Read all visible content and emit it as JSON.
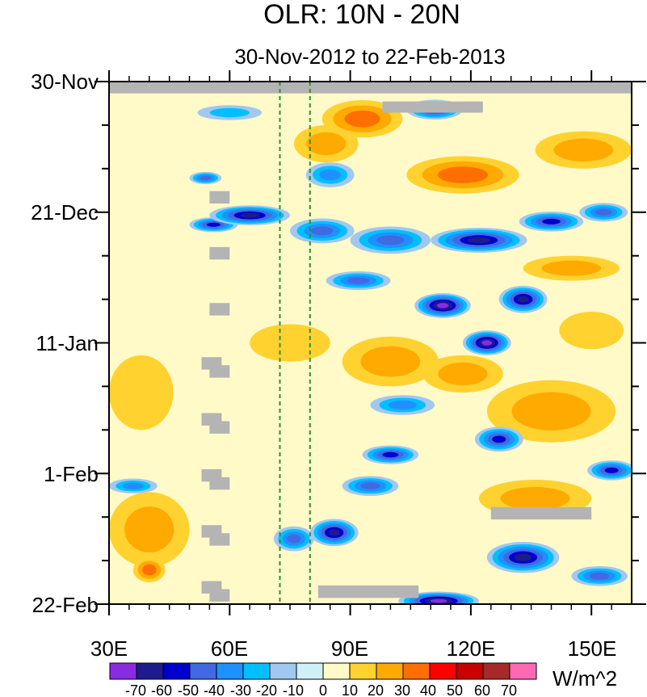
{
  "chart_data": {
    "type": "heatmap",
    "title": "OLR: 10N - 20N",
    "subtitle": "30-Nov-2012 to 22-Feb-2013",
    "x_axis": {
      "range": [
        30,
        160
      ],
      "ticks": [
        30,
        60,
        90,
        120,
        150
      ],
      "tick_labels": [
        "30E",
        "60E",
        "90E",
        "120E",
        "150E"
      ],
      "minor_ticks": [
        35,
        40,
        45,
        50,
        55,
        65,
        70,
        75,
        80,
        85,
        95,
        100,
        105,
        110,
        115,
        125,
        130,
        135,
        140,
        145,
        155
      ]
    },
    "y_axis": {
      "range_days": [
        0,
        84
      ],
      "inverted": true,
      "ticks_days": [
        0,
        21,
        42,
        63,
        84
      ],
      "tick_labels": [
        "30-Nov",
        "21-Dec",
        "11-Jan",
        "1-Feb",
        "22-Feb"
      ],
      "minor_interval_days": 7
    },
    "reference_lines_lon": [
      72.5,
      80
    ],
    "reference_line_color": "#2f8f2f",
    "colorbar": {
      "unit_label": "W/m^2",
      "levels": [
        -70,
        -60,
        -50,
        -40,
        -30,
        -20,
        -10,
        0,
        10,
        20,
        30,
        40,
        50,
        60,
        70
      ],
      "level_labels": [
        "-70",
        "-60",
        "-50",
        "-40",
        "-30",
        "-20",
        "-10",
        "0",
        "10",
        "20",
        "30",
        "40",
        "50",
        "60",
        "70"
      ],
      "colors": [
        "#8a2be2",
        "#1c1c8c",
        "#0000cd",
        "#4169e1",
        "#1e90ff",
        "#00bfff",
        "#a0c8f0",
        "#d0f0f8",
        "#fffac8",
        "#ffd230",
        "#ffaa00",
        "#ff6e00",
        "#ff0000",
        "#c80000",
        "#a52a2a",
        "#ff69b4"
      ]
    },
    "missing_color": "#b4b4b4",
    "missing_segments": [
      {
        "day_start": 0,
        "day_end": 1.9,
        "lon_start": 30,
        "lon_end": 160
      },
      {
        "day_start": 3.2,
        "day_end": 5.0,
        "lon_start": 98,
        "lon_end": 123
      },
      {
        "day_start": 17.6,
        "day_end": 19.6,
        "lon_start": 55,
        "lon_end": 60
      },
      {
        "day_start": 26.6,
        "day_end": 28.6,
        "lon_start": 55,
        "lon_end": 60
      },
      {
        "day_start": 35.6,
        "day_end": 37.6,
        "lon_start": 55,
        "lon_end": 60
      },
      {
        "day_start": 44.3,
        "day_end": 46.3,
        "lon_start": 53,
        "lon_end": 58
      },
      {
        "day_start": 45.6,
        "day_end": 47.6,
        "lon_start": 55,
        "lon_end": 60
      },
      {
        "day_start": 53.3,
        "day_end": 55.3,
        "lon_start": 53,
        "lon_end": 58
      },
      {
        "day_start": 54.6,
        "day_end": 56.6,
        "lon_start": 55,
        "lon_end": 60
      },
      {
        "day_start": 62.3,
        "day_end": 64.3,
        "lon_start": 53,
        "lon_end": 58
      },
      {
        "day_start": 63.6,
        "day_end": 65.6,
        "lon_start": 55,
        "lon_end": 60
      },
      {
        "day_start": 68.4,
        "day_end": 70.4,
        "lon_start": 125,
        "lon_end": 150
      },
      {
        "day_start": 71.3,
        "day_end": 73.3,
        "lon_start": 53,
        "lon_end": 58
      },
      {
        "day_start": 72.6,
        "day_end": 74.6,
        "lon_start": 55,
        "lon_end": 60
      },
      {
        "day_start": 80.3,
        "day_end": 82.3,
        "lon_start": 53,
        "lon_end": 58
      },
      {
        "day_start": 81.6,
        "day_end": 83.6,
        "lon_start": 55,
        "lon_end": 60
      },
      {
        "day_start": 81.0,
        "day_end": 83.0,
        "lon_start": 82,
        "lon_end": 107
      }
    ],
    "anomaly_features": [
      {
        "kind": "negative",
        "lon": 65,
        "day": 21.5,
        "lon_radius": 10,
        "day_radius": 1.6,
        "peak": -60
      },
      {
        "kind": "negative",
        "lon": 56,
        "day": 23.0,
        "lon_radius": 6,
        "day_radius": 1.2,
        "peak": -50
      },
      {
        "kind": "negative",
        "lon": 83,
        "day": 24.0,
        "lon_radius": 8,
        "day_radius": 2.0,
        "peak": -40
      },
      {
        "kind": "negative",
        "lon": 100,
        "day": 25.5,
        "lon_radius": 10,
        "day_radius": 2.2,
        "peak": -40
      },
      {
        "kind": "negative",
        "lon": 122,
        "day": 25.5,
        "lon_radius": 12,
        "day_radius": 2.0,
        "peak": -60
      },
      {
        "kind": "negative",
        "lon": 140,
        "day": 22.5,
        "lon_radius": 8,
        "day_radius": 1.6,
        "peak": -50
      },
      {
        "kind": "negative",
        "lon": 153,
        "day": 21.0,
        "lon_radius": 6,
        "day_radius": 1.5,
        "peak": -40
      },
      {
        "kind": "negative",
        "lon": 113,
        "day": 36.0,
        "lon_radius": 7,
        "day_radius": 2.0,
        "peak": -70
      },
      {
        "kind": "negative",
        "lon": 133,
        "day": 35.0,
        "lon_radius": 6,
        "day_radius": 2.2,
        "peak": -60
      },
      {
        "kind": "negative",
        "lon": 124,
        "day": 42.0,
        "lon_radius": 6,
        "day_radius": 2.0,
        "peak": -70
      },
      {
        "kind": "negative",
        "lon": 92,
        "day": 32.0,
        "lon_radius": 8,
        "day_radius": 1.5,
        "peak": -40
      },
      {
        "kind": "negative",
        "lon": 60,
        "day": 5.0,
        "lon_radius": 8,
        "day_radius": 1.2,
        "peak": -20
      },
      {
        "kind": "negative",
        "lon": 111,
        "day": 4.5,
        "lon_radius": 7,
        "day_radius": 1.6,
        "peak": -50
      },
      {
        "kind": "negative",
        "lon": 85,
        "day": 15.0,
        "lon_radius": 6,
        "day_radius": 2.0,
        "peak": -30
      },
      {
        "kind": "negative",
        "lon": 54,
        "day": 15.5,
        "lon_radius": 4,
        "day_radius": 1.0,
        "peak": -40
      },
      {
        "kind": "negative",
        "lon": 100,
        "day": 60.0,
        "lon_radius": 7,
        "day_radius": 1.5,
        "peak": -50
      },
      {
        "kind": "negative",
        "lon": 127,
        "day": 57.5,
        "lon_radius": 6,
        "day_radius": 2.0,
        "peak": -50
      },
      {
        "kind": "negative",
        "lon": 155,
        "day": 62.5,
        "lon_radius": 6,
        "day_radius": 1.6,
        "peak": -50
      },
      {
        "kind": "negative",
        "lon": 36,
        "day": 65.0,
        "lon_radius": 6,
        "day_radius": 1.2,
        "peak": -30
      },
      {
        "kind": "negative",
        "lon": 86,
        "day": 72.5,
        "lon_radius": 6,
        "day_radius": 2.2,
        "peak": -60
      },
      {
        "kind": "negative",
        "lon": 76,
        "day": 73.5,
        "lon_radius": 5,
        "day_radius": 2.0,
        "peak": -40
      },
      {
        "kind": "negative",
        "lon": 133,
        "day": 76.5,
        "lon_radius": 9,
        "day_radius": 2.5,
        "peak": -60
      },
      {
        "kind": "negative",
        "lon": 112,
        "day": 83.5,
        "lon_radius": 10,
        "day_radius": 1.5,
        "peak": -70
      },
      {
        "kind": "negative",
        "lon": 152,
        "day": 79.5,
        "lon_radius": 7,
        "day_radius": 1.6,
        "peak": -40
      },
      {
        "kind": "negative",
        "lon": 103,
        "day": 52.0,
        "lon_radius": 8,
        "day_radius": 1.6,
        "peak": -30
      },
      {
        "kind": "negative",
        "lon": 95,
        "day": 65.0,
        "lon_radius": 7,
        "day_radius": 1.6,
        "peak": -40
      },
      {
        "kind": "positive",
        "lon": 93,
        "day": 6.0,
        "lon_radius": 10,
        "day_radius": 3.0,
        "peak": 30
      },
      {
        "kind": "positive",
        "lon": 118,
        "day": 15.0,
        "lon_radius": 14,
        "day_radius": 3.0,
        "peak": 35
      },
      {
        "kind": "positive",
        "lon": 148,
        "day": 11.0,
        "lon_radius": 12,
        "day_radius": 3.0,
        "peak": 28
      },
      {
        "kind": "positive",
        "lon": 84,
        "day": 10.0,
        "lon_radius": 8,
        "day_radius": 3.0,
        "peak": 25
      },
      {
        "kind": "positive",
        "lon": 145,
        "day": 30.0,
        "lon_radius": 12,
        "day_radius": 2.0,
        "peak": 28
      },
      {
        "kind": "positive",
        "lon": 100,
        "day": 45.0,
        "lon_radius": 12,
        "day_radius": 4.0,
        "peak": 22
      },
      {
        "kind": "positive",
        "lon": 118,
        "day": 47.0,
        "lon_radius": 10,
        "day_radius": 3.0,
        "peak": 22
      },
      {
        "kind": "positive",
        "lon": 140,
        "day": 53.0,
        "lon_radius": 16,
        "day_radius": 5.0,
        "peak": 22
      },
      {
        "kind": "positive",
        "lon": 40,
        "day": 72.0,
        "lon_radius": 10,
        "day_radius": 6.0,
        "peak": 22
      },
      {
        "kind": "positive",
        "lon": 40,
        "day": 78.5,
        "lon_radius": 4,
        "day_radius": 2.0,
        "peak": 30
      },
      {
        "kind": "positive",
        "lon": 136,
        "day": 67.0,
        "lon_radius": 14,
        "day_radius": 3.0,
        "peak": 22
      },
      {
        "kind": "positive",
        "lon": 38,
        "day": 50.0,
        "lon_radius": 8,
        "day_radius": 6.0,
        "peak": 15
      },
      {
        "kind": "positive",
        "lon": 75,
        "day": 42.0,
        "lon_radius": 10,
        "day_radius": 3.0,
        "peak": 15
      },
      {
        "kind": "positive",
        "lon": 150,
        "day": 40.0,
        "lon_radius": 8,
        "day_radius": 3.0,
        "peak": 18
      }
    ]
  }
}
